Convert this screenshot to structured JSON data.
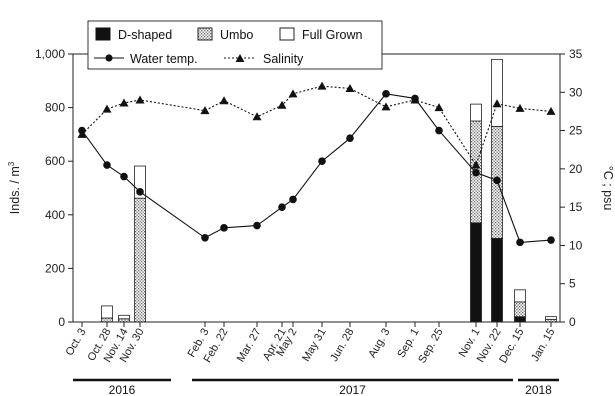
{
  "chart_data": {
    "type": "bar+line",
    "legend": {
      "bars": [
        "D-shaped",
        "Umbo",
        "Full Grown"
      ],
      "lines": [
        "Water temp.",
        "Salinity"
      ]
    },
    "ylabel_left": "Inds. / m",
    "ylabel_left_sup": "3",
    "ylabel_right": "°C ; psu",
    "ylim_left": [
      0,
      1000
    ],
    "yticks_left": [
      "0",
      "200",
      "400",
      "600",
      "800",
      "1,000"
    ],
    "ylim_right": [
      0,
      35
    ],
    "yticks_right": [
      "0",
      "5",
      "10",
      "15",
      "20",
      "25",
      "30",
      "35"
    ],
    "x_dates": [
      "2016-10-03",
      "2016-10-28",
      "2016-11-14",
      "2016-11-30",
      "2017-02-03",
      "2017-02-22",
      "2017-03-27",
      "2017-04-21",
      "2017-05-02",
      "2017-05-31",
      "2017-06-28",
      "2017-08-03",
      "2017-09-01",
      "2017-09-25",
      "2017-11-01",
      "2017-11-22",
      "2017-12-15",
      "2018-01-15"
    ],
    "x_labels": [
      "Oct. 3",
      "Oct. 28",
      "Nov. 14",
      "Nov. 30",
      "Feb. 3",
      "Feb. 22",
      "Mar. 27",
      "Apr. 21",
      "May 2",
      "May 31",
      "Jun. 28",
      "Aug. 3",
      "Sep. 1",
      "Sep. 25",
      "Nov. 1",
      "Nov. 22",
      "Dec. 15",
      "Jan. 15"
    ],
    "years": [
      {
        "label": "2016",
        "start": "2016-09-24",
        "end": "2016-12-31"
      },
      {
        "label": "2017",
        "start": "2017-01-21",
        "end": "2017-12-08"
      },
      {
        "label": "2018",
        "start": "2017-12-13",
        "end": "2018-01-23"
      }
    ],
    "series": [
      {
        "name": "D-shaped",
        "kind": "bar",
        "values": [
          0,
          0,
          0,
          0,
          0,
          0,
          0,
          0,
          0,
          0,
          0,
          0,
          0,
          0,
          370,
          312,
          20,
          0
        ]
      },
      {
        "name": "Umbo",
        "kind": "bar",
        "values": [
          0,
          15,
          12,
          462,
          0,
          0,
          0,
          0,
          0,
          0,
          0,
          0,
          0,
          0,
          380,
          418,
          55,
          10
        ]
      },
      {
        "name": "Full Grown",
        "kind": "bar",
        "values": [
          0,
          45,
          13,
          120,
          0,
          0,
          0,
          0,
          0,
          0,
          0,
          0,
          0,
          0,
          63,
          250,
          45,
          10
        ]
      },
      {
        "name": "Water temp.",
        "kind": "line",
        "axis": "right",
        "values": [
          25,
          20.5,
          19,
          17,
          11,
          12.3,
          12.6,
          15,
          16,
          21,
          24,
          29.8,
          29.2,
          25,
          19.5,
          18.5,
          10.4,
          10.7
        ]
      },
      {
        "name": "Salinity",
        "kind": "line",
        "axis": "right",
        "values": [
          24.5,
          27.8,
          28.6,
          29,
          27.6,
          28.9,
          26.8,
          28.3,
          29.8,
          30.8,
          30.5,
          28.1,
          29,
          28,
          20.5,
          28.5,
          27.9,
          27.5
        ]
      }
    ],
    "colors": {
      "d_shaped": "#111111",
      "umbo": "#dcdcdc",
      "full_grown": "#ffffff",
      "line": "#111111"
    },
    "grid": false,
    "legend_position": "top-left"
  }
}
